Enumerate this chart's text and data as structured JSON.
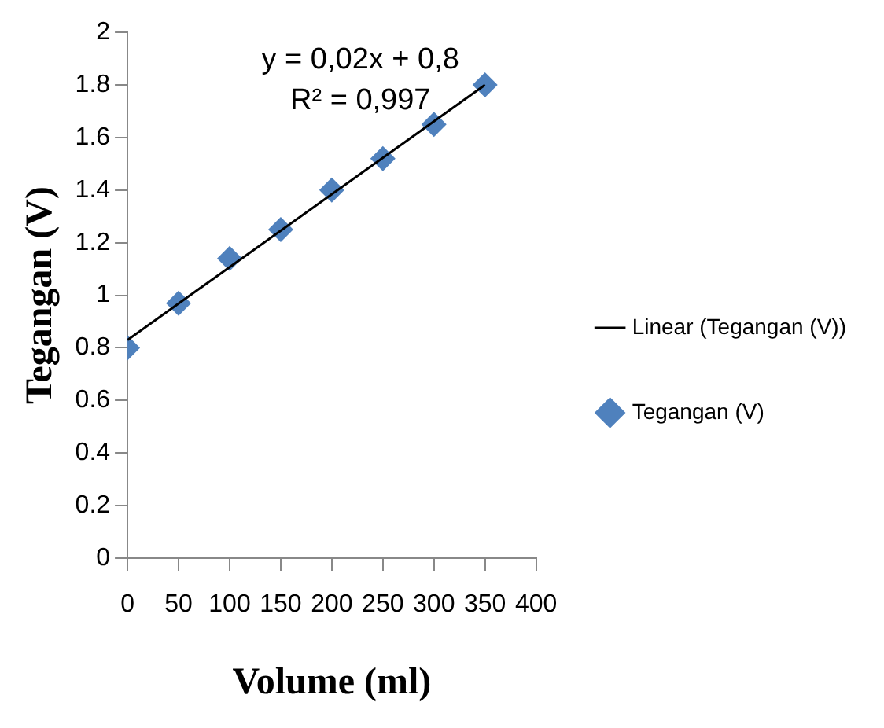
{
  "chart_data": {
    "type": "scatter",
    "xlabel": "Volume (ml)",
    "ylabel": "Tegangan (V)",
    "x": [
      0,
      50,
      100,
      150,
      200,
      250,
      300,
      350
    ],
    "series": [
      {
        "name": "Tegangan (V)",
        "type": "scatter",
        "color": "#4f81bd",
        "marker": "diamond",
        "values": [
          0.8,
          0.97,
          1.14,
          1.25,
          1.4,
          1.52,
          1.65,
          1.8
        ]
      },
      {
        "name": "Linear (Tegangan (V))",
        "type": "line",
        "color": "#000000",
        "marker": "none",
        "x": [
          0,
          350
        ],
        "values": [
          0.83,
          1.8
        ]
      }
    ],
    "xlim": [
      0,
      400
    ],
    "xticks": [
      0,
      50,
      100,
      150,
      200,
      250,
      300,
      350,
      400
    ],
    "ylim": [
      0,
      2
    ],
    "yticks": [
      0,
      0.2,
      0.4,
      0.6,
      0.8,
      1,
      1.2,
      1.4,
      1.6,
      1.8,
      2
    ],
    "grid": false,
    "legend": "right",
    "annotations": [
      "y = 0,02x + 0,8",
      "R² = 0,997"
    ]
  }
}
